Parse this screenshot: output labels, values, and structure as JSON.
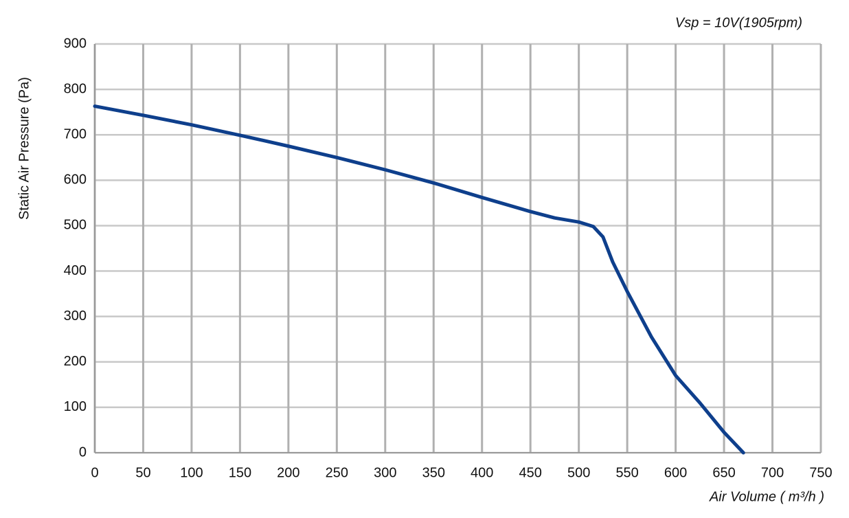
{
  "chart_data": {
    "type": "line",
    "annotation": "Vsp = 10V(1905rpm)",
    "ylabel": "Static Air Pressure  (Pa)",
    "xlabel": "Air Volume ( m³/h )",
    "x": [
      0,
      50,
      100,
      150,
      200,
      250,
      300,
      350,
      400,
      450,
      475,
      500,
      515,
      525,
      535,
      550,
      575,
      600,
      625,
      650,
      670
    ],
    "series": [
      {
        "name": "Vsp = 10V",
        "color": "#0e3f8c",
        "values": [
          763,
          743,
          722,
          699,
          675,
          650,
          623,
          594,
          562,
          531,
          517,
          508,
          498,
          475,
          420,
          355,
          255,
          170,
          110,
          45,
          0
        ]
      }
    ],
    "xlim": [
      0,
      750
    ],
    "xticks": [
      0,
      50,
      100,
      150,
      200,
      250,
      300,
      350,
      400,
      450,
      500,
      550,
      600,
      650,
      700,
      750
    ],
    "ylim": [
      0,
      900
    ],
    "yticks": [
      0,
      100,
      200,
      300,
      400,
      500,
      600,
      700,
      800,
      900
    ],
    "grid": true
  }
}
